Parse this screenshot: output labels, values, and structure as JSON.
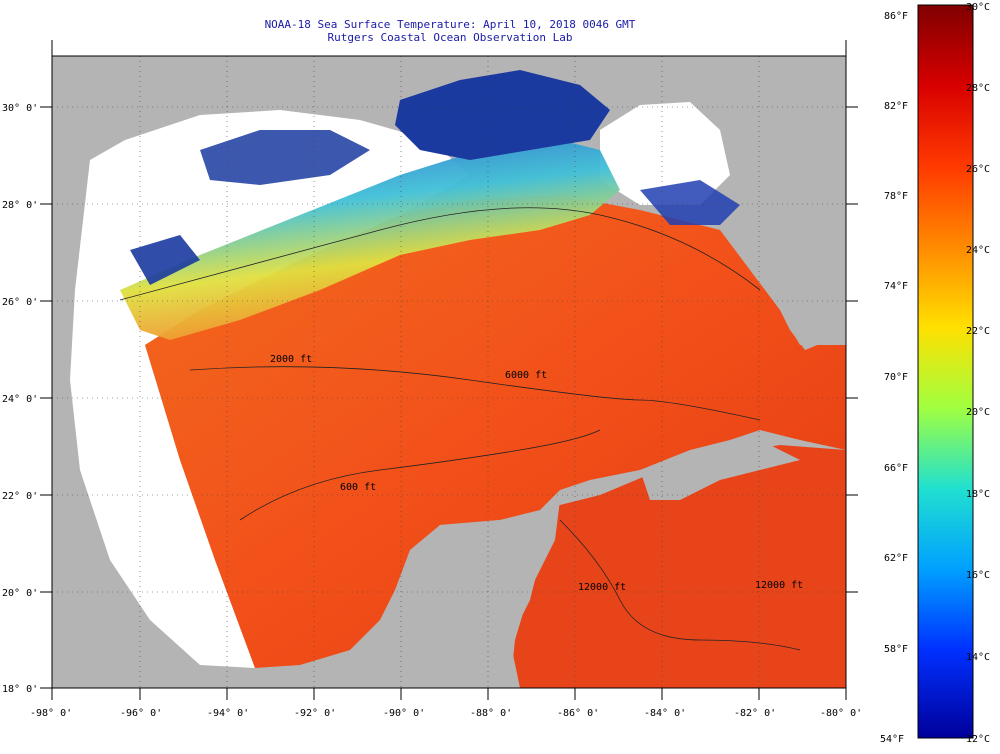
{
  "header": {
    "title": "NOAA-18 Sea Surface Temperature:  April 10, 2018 0046 GMT",
    "subtitle": "Rutgers Coastal Ocean Observation Lab"
  },
  "map": {
    "lon_range": [
      -98,
      -80
    ],
    "lat_range": [
      18,
      31
    ],
    "lon_ticks": [
      "-98° 0'",
      "-96° 0'",
      "-94° 0'",
      "-92° 0'",
      "-90° 0'",
      "-88° 0'",
      "-86° 0'",
      "-84° 0'",
      "-82° 0'",
      "-80° 0'"
    ],
    "lat_ticks": [
      "30° 0'",
      "28° 0'",
      "26° 0'",
      "24° 0'",
      "22° 0'",
      "20° 0'",
      "18° 0'"
    ],
    "contour_labels": [
      "2000 ft",
      "6000 ft",
      "600 ft",
      "12000 ft",
      "12000 ft"
    ],
    "colors": {
      "land": "#b4b4b4",
      "no_data": "#ffffff",
      "warm_water": "#f25a1a",
      "cold_water": "#1a3aa0"
    }
  },
  "colorbar": {
    "fahrenheit_labels": [
      "86°F",
      "82°F",
      "78°F",
      "74°F",
      "70°F",
      "66°F",
      "62°F",
      "58°F",
      "54°F"
    ],
    "celsius_labels": [
      "30°C",
      "28°C",
      "26°C",
      "24°C",
      "22°C",
      "20°C",
      "18°C",
      "16°C",
      "14°C",
      "12°C"
    ],
    "fahrenheit_range": [
      54,
      86
    ],
    "celsius_range": [
      12,
      30
    ]
  }
}
